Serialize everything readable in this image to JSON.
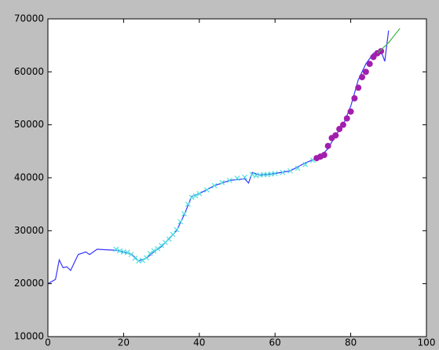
{
  "chart_data": {
    "type": "line",
    "xlim": [
      0,
      100
    ],
    "xticks": [
      0,
      20,
      40,
      60,
      80,
      100
    ],
    "ylim": [
      10000,
      70000
    ],
    "yticks": [
      10000,
      20000,
      30000,
      40000,
      50000,
      60000,
      70000
    ],
    "series": [
      {
        "style": "line",
        "color": "#3535ff",
        "x": [
          0,
          2,
          3,
          4,
          5,
          6,
          8,
          10,
          11,
          13,
          18,
          22,
          24,
          26,
          28,
          30,
          32,
          34,
          36,
          38,
          40,
          44,
          48,
          52,
          53,
          54,
          56,
          60,
          64,
          68,
          72,
          74,
          76,
          78,
          80,
          82,
          84,
          86,
          88,
          89,
          90
        ],
        "values": [
          20000,
          20800,
          24500,
          23000,
          23200,
          22500,
          25500,
          26000,
          25500,
          26500,
          26300,
          25600,
          24300,
          24800,
          26000,
          27000,
          28500,
          30000,
          33000,
          36500,
          37000,
          38500,
          39500,
          39800,
          39000,
          41000,
          40500,
          40800,
          41300,
          42800,
          44000,
          45500,
          48000,
          50000,
          53500,
          58500,
          61500,
          63500,
          63900,
          62000,
          67800
        ]
      },
      {
        "style": "x",
        "color": "#4fdede",
        "x": [
          18,
          19,
          20,
          21,
          22,
          23,
          24,
          25,
          26,
          27,
          28,
          29,
          30,
          31,
          32,
          33,
          34,
          35,
          36,
          37,
          38,
          39,
          40,
          42,
          44,
          46,
          48,
          50,
          52,
          54,
          55,
          56,
          57,
          58,
          59,
          60,
          62,
          64,
          66,
          68,
          70
        ],
        "values": [
          26500,
          26200,
          26000,
          25900,
          25500,
          24800,
          24300,
          24400,
          24900,
          25700,
          26200,
          26600,
          27200,
          27800,
          28400,
          29300,
          30200,
          31700,
          33200,
          35000,
          36300,
          36600,
          37000,
          37700,
          38500,
          39100,
          39500,
          39900,
          40100,
          40600,
          40400,
          40500,
          40600,
          40600,
          40700,
          40800,
          41000,
          41300,
          41800,
          42500,
          43300
        ]
      },
      {
        "style": "o",
        "color": "#a21fae",
        "x": [
          71,
          72,
          73,
          74,
          75,
          76,
          77,
          78,
          79,
          80,
          81,
          82,
          83,
          84,
          85,
          86,
          87,
          88
        ],
        "values": [
          43700,
          44000,
          44300,
          46000,
          47500,
          48000,
          49200,
          50000,
          51200,
          52500,
          55000,
          57000,
          59000,
          60000,
          61500,
          62800,
          63500,
          63900
        ]
      },
      {
        "style": "line",
        "color": "#3fb54a",
        "x": [
          87,
          90,
          93
        ],
        "values": [
          63500,
          65500,
          68200
        ]
      }
    ]
  }
}
